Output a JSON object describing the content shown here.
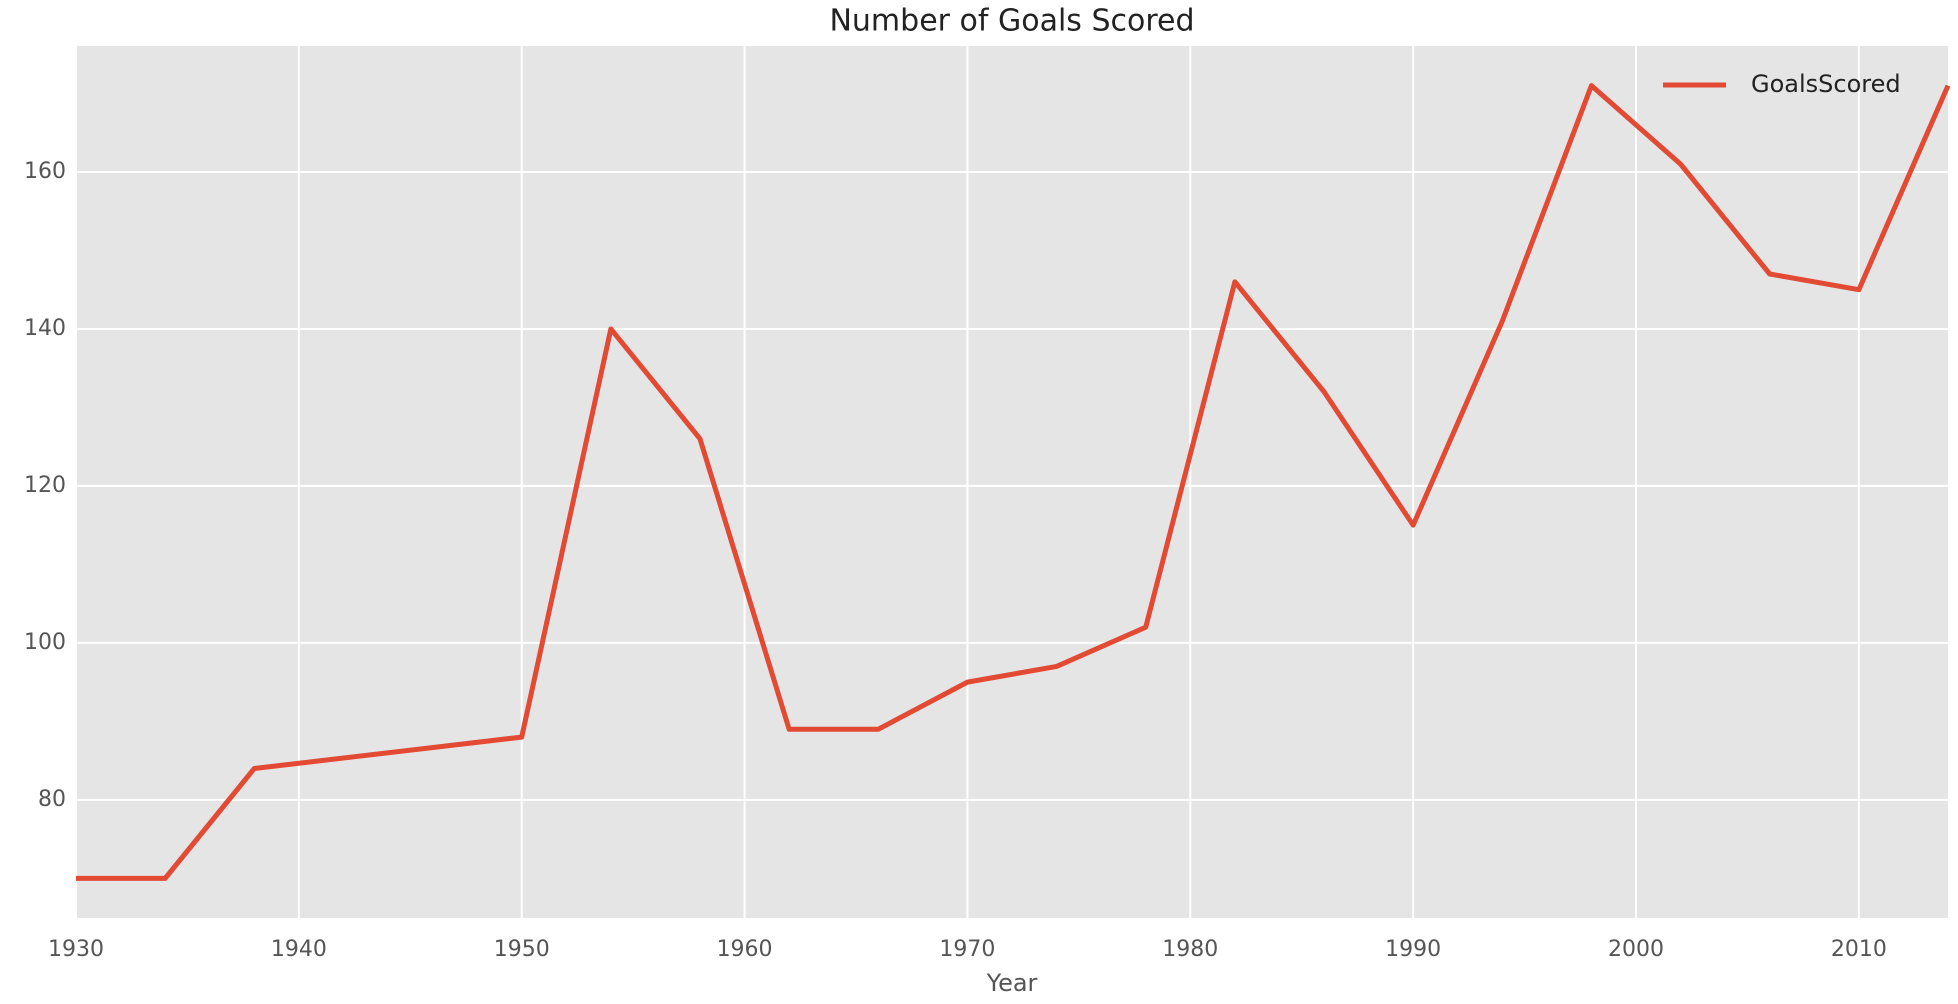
{
  "chart_data": {
    "type": "line",
    "title": "Number of Goals Scored",
    "x_label": "Year",
    "x": [
      1930,
      1934,
      1938,
      1950,
      1954,
      1958,
      1962,
      1966,
      1970,
      1974,
      1978,
      1982,
      1986,
      1990,
      1994,
      1998,
      2002,
      2006,
      2010,
      2014
    ],
    "series": [
      {
        "name": "GoalsScored",
        "color": "#e24a33",
        "values": [
          70,
          70,
          84,
          88,
          140,
          126,
          89,
          89,
          95,
          97,
          102,
          146,
          132,
          115,
          141,
          171,
          161,
          147,
          145,
          171
        ]
      }
    ],
    "xlim": [
      1930,
      2014
    ],
    "xticks": [
      1930,
      1940,
      1950,
      1960,
      1970,
      1980,
      1990,
      2000,
      2010
    ],
    "ylim": [
      64.95,
      176.05
    ],
    "yticks": [
      80,
      100,
      120,
      140,
      160
    ],
    "grid": true,
    "legend": "upper right"
  }
}
